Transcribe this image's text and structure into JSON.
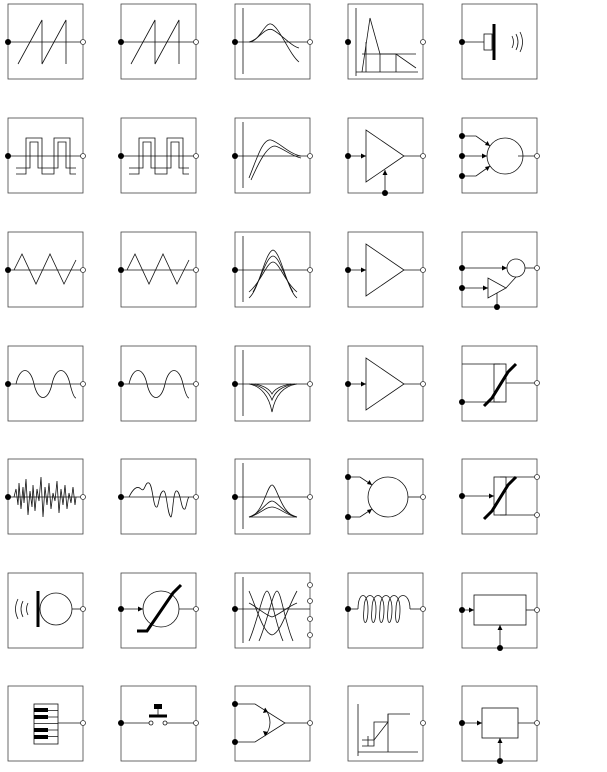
{
  "grid": {
    "columns": 5,
    "rows": 7,
    "symbols": [
      [
        "sawtooth-oscillator",
        "sawtooth-oscillator",
        "envelope-generator",
        "adsr-envelope",
        "loudspeaker"
      ],
      [
        "square-wave-oscillator",
        "square-wave-oscillator",
        "envelope-generator",
        "voltage-controlled-amplifier",
        "mixer"
      ],
      [
        "triangle-wave-oscillator",
        "triangle-wave-oscillator",
        "bandpass-filter",
        "amplifier",
        "modulator"
      ],
      [
        "sine-wave-oscillator",
        "sine-wave-oscillator",
        "notch-filter",
        "amplifier",
        "voltage-controlled-resistor"
      ],
      [
        "noise-generator",
        "random-waveform-generator",
        "resonant-filter",
        "summing-mixer",
        "voltage-controlled-resistor"
      ],
      [
        "microphone",
        "waveshaper",
        "filter-bank",
        "spring-reverb",
        "processor-module"
      ],
      [
        "keyboard-controller",
        "push-button",
        "crossfader",
        "step-response-limiter",
        "control-module"
      ]
    ]
  },
  "icons": {
    "input_terminal": "filled-dot",
    "output_terminal": "hollow-dot",
    "frame": "square-box"
  },
  "colors": {
    "line": "#111111",
    "frame": "#444444",
    "background": "#ffffff"
  }
}
